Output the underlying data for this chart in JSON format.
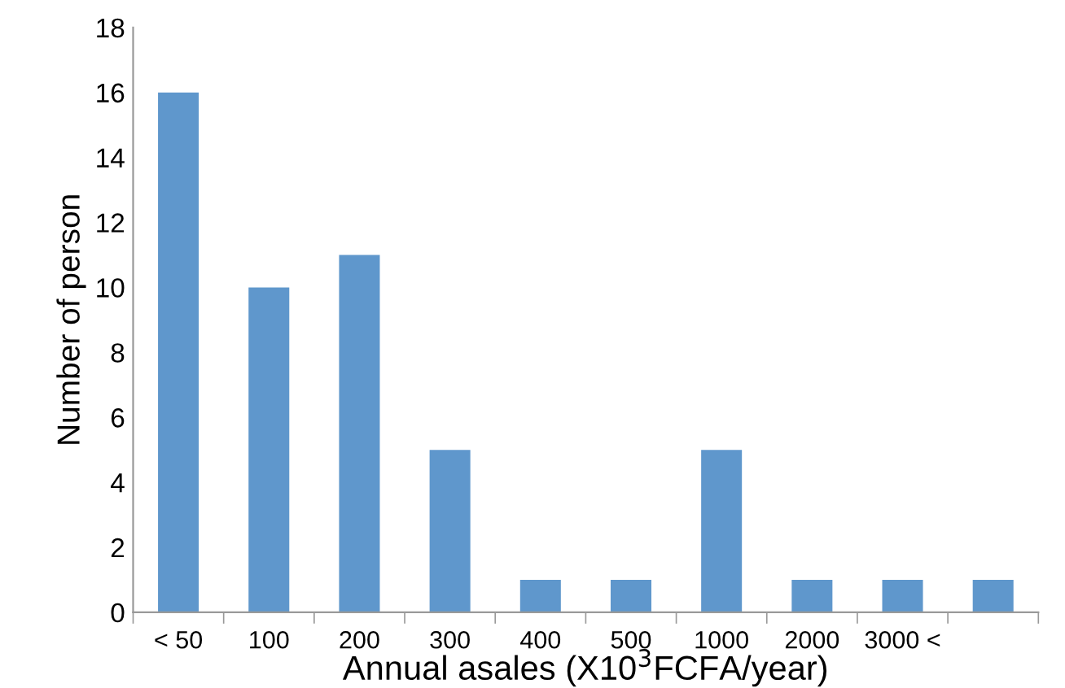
{
  "chart_data": {
    "type": "bar",
    "categories": [
      "< 50",
      "100",
      "200",
      "300",
      "400",
      "500",
      "1000",
      "2000",
      "3000 <",
      null
    ],
    "values": [
      16,
      10,
      11,
      5,
      1,
      1,
      5,
      1,
      1,
      1
    ],
    "color": "#5f97cc",
    "xlabel": "Annual asales (X10$^{3}$FCFA/year)",
    "ylabel": "Number of person",
    "ylim": [
      0,
      18
    ],
    "yticks": [
      0,
      2,
      4,
      6,
      8,
      10,
      12,
      14,
      16,
      18
    ],
    "grid": false,
    "legend": false
  }
}
